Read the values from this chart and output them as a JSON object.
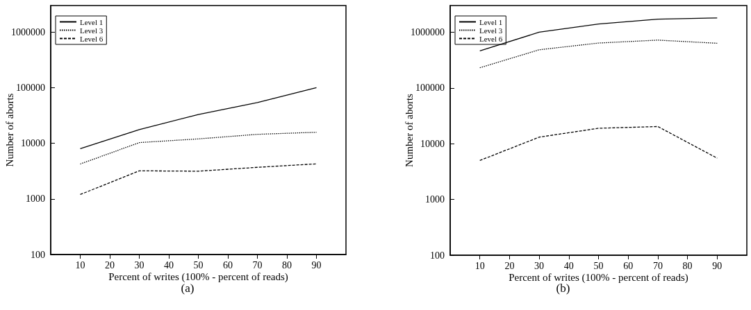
{
  "chart_data": [
    {
      "type": "line",
      "xlabel": "Percent of writes (100% - percent of reads)",
      "ylabel": "Number of aborts",
      "annotations": [
        "(a)"
      ],
      "x": [
        10,
        30,
        50,
        70,
        90
      ],
      "log": "y",
      "xlim": [
        0,
        100
      ],
      "xticks": [
        10,
        20,
        30,
        40,
        50,
        60,
        70,
        80,
        90
      ],
      "ylim": [
        100,
        3000000
      ],
      "yticks": [
        100,
        1000,
        10000,
        100000,
        1000000
      ],
      "grid": false,
      "legend": "top left",
      "marker": "none",
      "series": [
        {
          "name": "Level 1",
          "color": "#000000",
          "line_style": "solid",
          "values": [
            8000,
            17600,
            33000,
            54000,
            100000
          ]
        },
        {
          "name": "Level 3",
          "color": "#000000",
          "line_style": "dotted",
          "values": [
            4240,
            10300,
            12000,
            14500,
            15800
          ]
        },
        {
          "name": "Level 6",
          "color": "#000000",
          "line_style": "dashed",
          "values": [
            1200,
            3200,
            3150,
            3700,
            4270
          ]
        }
      ]
    },
    {
      "type": "line",
      "xlabel": "Percent of writes (100% - percent of reads)",
      "ylabel": "Number of aborts",
      "annotations": [
        "(b)"
      ],
      "x": [
        10,
        30,
        50,
        70,
        90
      ],
      "log": "y",
      "xlim": [
        0,
        100
      ],
      "xticks": [
        10,
        20,
        30,
        40,
        50,
        60,
        70,
        80,
        90
      ],
      "ylim": [
        100,
        3000000
      ],
      "yticks": [
        100,
        1000,
        10000,
        100000,
        1000000
      ],
      "grid": false,
      "legend": "top left",
      "marker": "none",
      "series": [
        {
          "name": "Level 1",
          "color": "#000000",
          "line_style": "solid",
          "values": [
            460000,
            1000000,
            1400000,
            1710000,
            1800000
          ]
        },
        {
          "name": "Level 3",
          "color": "#000000",
          "line_style": "dotted",
          "values": [
            230000,
            483000,
            638000,
            720000,
            632000
          ]
        },
        {
          "name": "Level 6",
          "color": "#000000",
          "line_style": "dashed",
          "values": [
            5000,
            13100,
            18900,
            20300,
            5500
          ]
        }
      ]
    }
  ]
}
